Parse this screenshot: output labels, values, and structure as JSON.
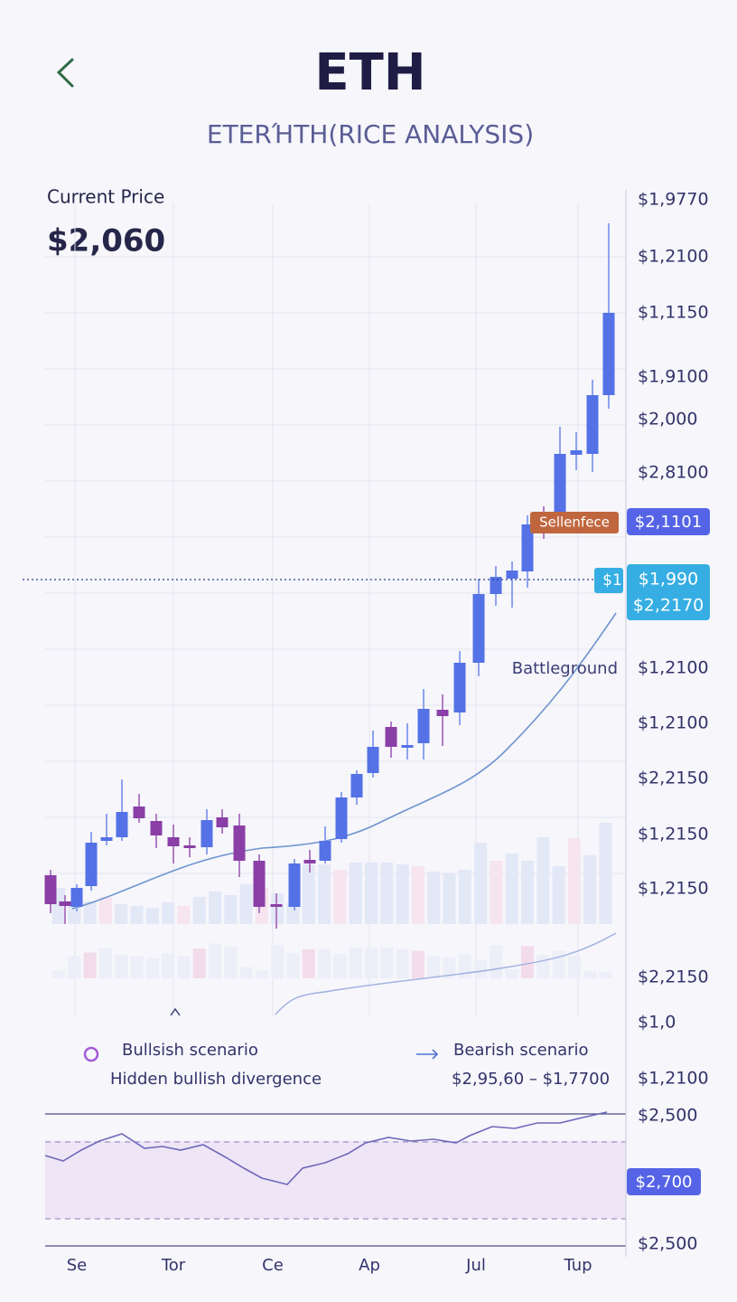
{
  "header": {
    "title": "ETH",
    "subtitle": "ETERΉTH(RICE ANALYSIS)"
  },
  "price": {
    "label": "Current Price",
    "value": "$2,060"
  },
  "axis_labels": [
    "$1,9770",
    "$1,2100",
    "$1,1150",
    "$1,9100",
    "$2,000",
    "$2,8100",
    "$1,2100",
    "$1,2100",
    "$2,2150",
    "$1,2150",
    "$1,2150",
    "$2,2150",
    "$1,0",
    "$1,2100",
    "$2,500",
    "$2,500"
  ],
  "badges": {
    "resistance": "Sellenfece",
    "resistance_price": "$2,1101",
    "current_short": "$1",
    "current_price": "$1,990",
    "support_price": "$2,2170",
    "rsi_price": "$2,700"
  },
  "annotation": "Battleground",
  "legend": {
    "bullish": "Bullsish scenario",
    "bullish_note": "Hidden bullish divergence",
    "bearish": "Bearish scenario",
    "bearish_range": "$2,95,60 – $1,7700"
  },
  "x_labels": [
    "Se",
    "Tor",
    "Ce",
    "Ap",
    "Jul",
    "Tup"
  ]
}
